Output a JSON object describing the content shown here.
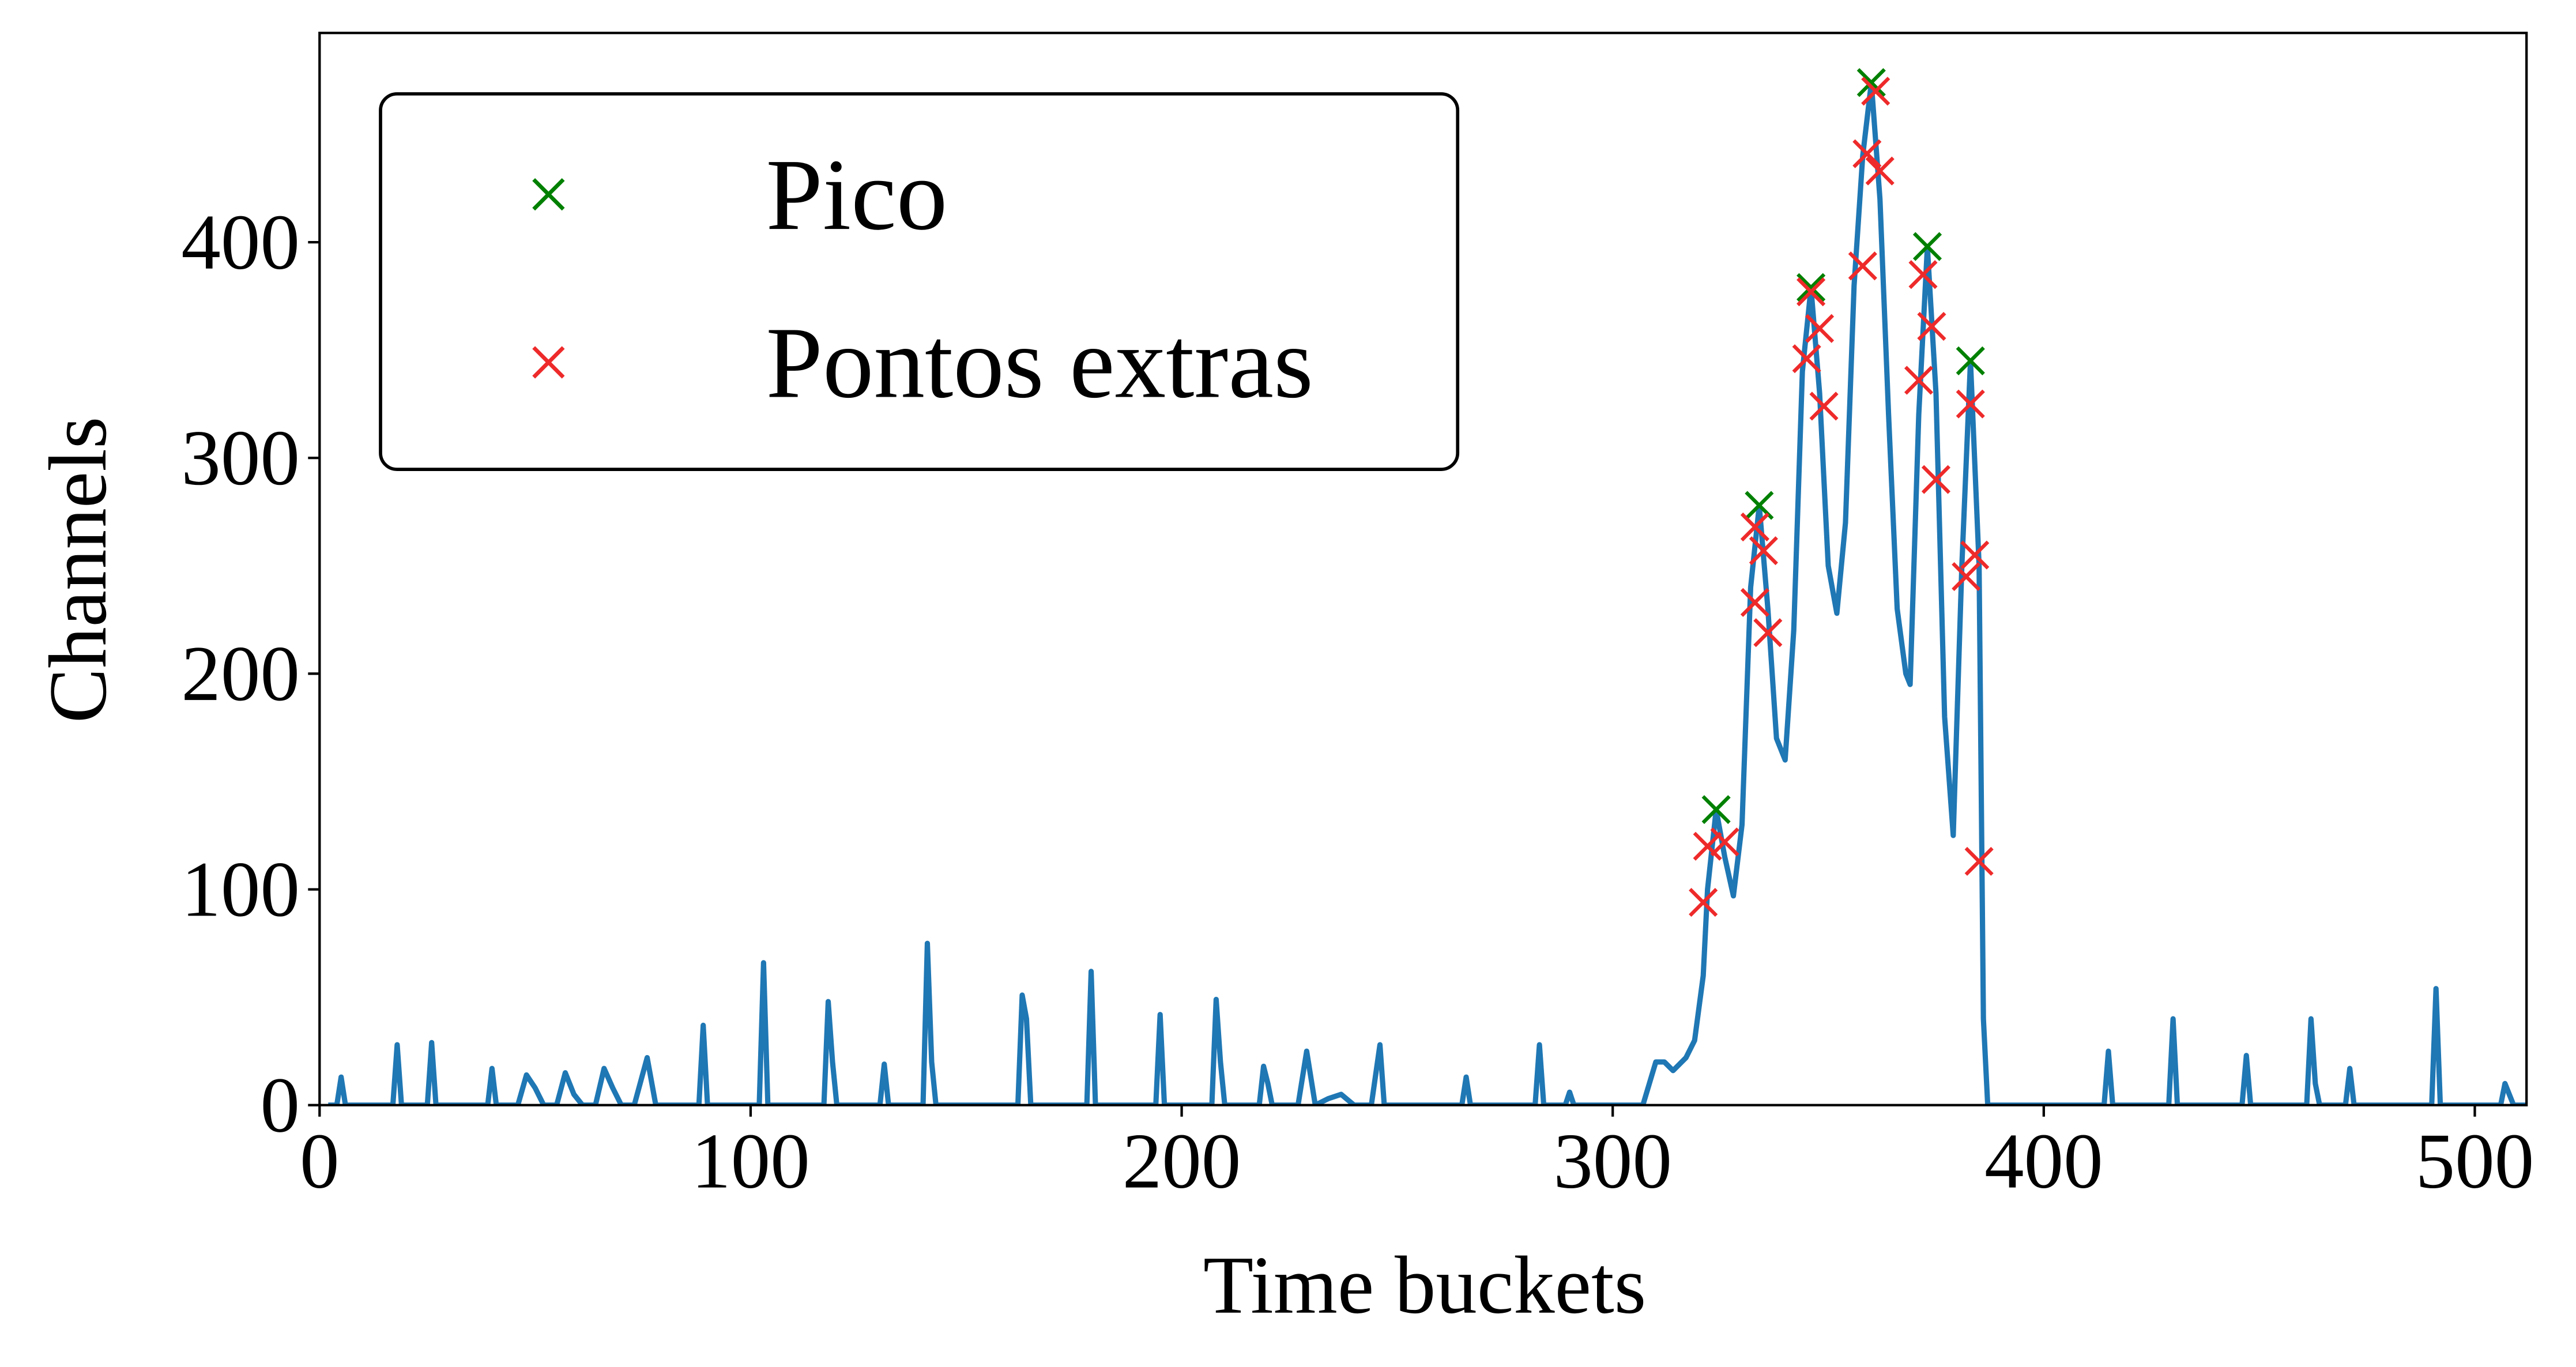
{
  "chart_data": {
    "type": "line",
    "x_label": "Time buckets",
    "y_label": "Channels",
    "xlim": [
      0,
      512
    ],
    "ylim": [
      0,
      497
    ],
    "xticks": [
      0,
      100,
      200,
      300,
      400,
      500
    ],
    "yticks": [
      0,
      100,
      200,
      300,
      400
    ],
    "legend": "upper left",
    "series": [
      {
        "type": "line",
        "color": "#1f77b4",
        "x": [
          2,
          4,
          5,
          6,
          17,
          18,
          19,
          25,
          26,
          27,
          39,
          40,
          41,
          46,
          48,
          50,
          52,
          55,
          57,
          59,
          61,
          64,
          66,
          68,
          70,
          73,
          76,
          78,
          88,
          89,
          90,
          102,
          103,
          104,
          117,
          118,
          119,
          120,
          130,
          131,
          132,
          140,
          141,
          142,
          143,
          162,
          163,
          164,
          165,
          178,
          179,
          180,
          194,
          195,
          196,
          207,
          208,
          209,
          210,
          218,
          219,
          220,
          221,
          227,
          229,
          231,
          234,
          237,
          240,
          244,
          246,
          247,
          265,
          266,
          267,
          282,
          283,
          284,
          289,
          290,
          291,
          307,
          310,
          312,
          314,
          317,
          319,
          321,
          322,
          324,
          326,
          328,
          330,
          332,
          334,
          336,
          338,
          340,
          342,
          344,
          346,
          348,
          350,
          352,
          354,
          356,
          358,
          360,
          362,
          364,
          366,
          368,
          369,
          371,
          373,
          375,
          377,
          379,
          381,
          383,
          385,
          386,
          387,
          414,
          415,
          416,
          429,
          430,
          431,
          446,
          447,
          448,
          461,
          462,
          463,
          464,
          470,
          471,
          472,
          490,
          491,
          492,
          506,
          507,
          509,
          512
        ],
        "values": [
          0,
          0,
          13,
          0,
          0,
          28,
          0,
          0,
          29,
          0,
          0,
          17,
          0,
          0,
          14,
          8,
          0,
          0,
          15,
          5,
          0,
          0,
          17,
          8,
          0,
          0,
          22,
          0,
          0,
          37,
          0,
          0,
          66,
          0,
          0,
          48,
          20,
          0,
          0,
          19,
          0,
          0,
          75,
          20,
          0,
          0,
          51,
          40,
          0,
          0,
          62,
          0,
          0,
          42,
          0,
          0,
          49,
          20,
          0,
          0,
          18,
          10,
          0,
          0,
          25,
          0,
          3,
          5,
          0,
          0,
          28,
          0,
          0,
          13,
          0,
          0,
          28,
          0,
          0,
          6,
          0,
          0,
          20,
          20,
          16,
          22,
          30,
          60,
          100,
          137,
          115,
          97,
          130,
          240,
          278,
          230,
          170,
          160,
          220,
          340,
          379,
          330,
          250,
          228,
          270,
          380,
          440,
          474,
          420,
          320,
          230,
          200,
          195,
          320,
          398,
          330,
          180,
          125,
          250,
          345,
          250,
          40,
          0,
          0,
          25,
          0,
          0,
          40,
          0,
          0,
          23,
          0,
          0,
          40,
          10,
          0,
          0,
          17,
          0,
          0,
          54,
          0,
          0,
          10,
          0,
          0
        ]
      },
      {
        "type": "scatter",
        "name": "Pico",
        "color": "#008000",
        "x": [
          324,
          334,
          346,
          360,
          373,
          383
        ],
        "values": [
          137,
          278,
          379,
          474,
          398,
          345
        ]
      },
      {
        "type": "scatter",
        "name": "Pontos extras",
        "color": "#ee2a2a",
        "x": [
          321,
          322,
          326,
          333,
          333,
          335,
          336,
          345,
          346,
          348,
          349,
          358,
          359,
          361,
          362,
          371,
          372,
          374,
          375,
          382,
          383,
          384,
          385
        ],
        "values": [
          94,
          120,
          122,
          233,
          268,
          257,
          219,
          346,
          377,
          360,
          324,
          389,
          441,
          470,
          433,
          336,
          385,
          361,
          290,
          245,
          325,
          255,
          113
        ]
      }
    ]
  }
}
